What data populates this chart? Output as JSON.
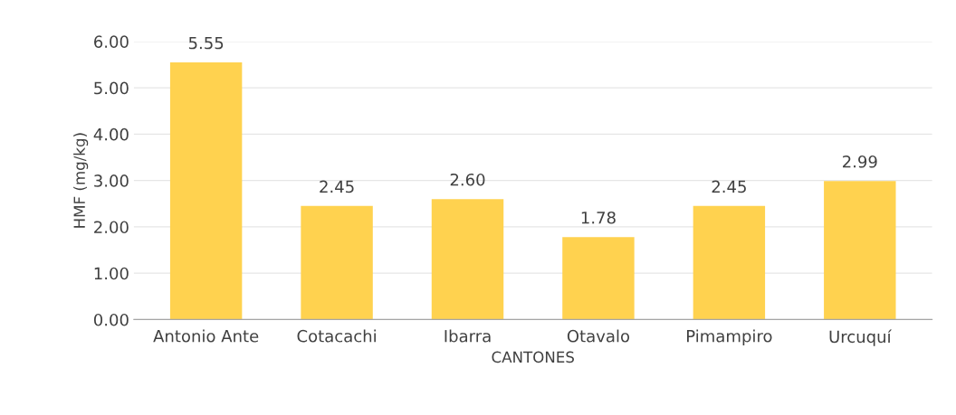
{
  "chart_data": {
    "type": "bar",
    "xlabel": "CANTONES",
    "ylabel": "HMF (mg/kg)",
    "categories": [
      "Antonio Ante",
      "Cotacachi",
      "Ibarra",
      "Otavalo",
      "Pimampiro",
      "Urcuquí"
    ],
    "values": [
      5.55,
      2.45,
      2.6,
      1.78,
      2.45,
      2.99
    ],
    "color": "#ffd24f",
    "ylim": [
      0,
      6
    ],
    "yticks": [
      {
        "value": 0,
        "label": "0.00"
      },
      {
        "value": 1,
        "label": "1.00"
      },
      {
        "value": 2,
        "label": "2.00"
      },
      {
        "value": 3,
        "label": "3.00"
      },
      {
        "value": 4,
        "label": "4.00"
      },
      {
        "value": 5,
        "label": "5.00"
      },
      {
        "value": 6,
        "label": "6.00"
      }
    ],
    "value_labels": [
      "5.55",
      "2.45",
      "2.60",
      "1.78",
      "2.45",
      "2.99"
    ],
    "grid": "y",
    "legend": false
  }
}
